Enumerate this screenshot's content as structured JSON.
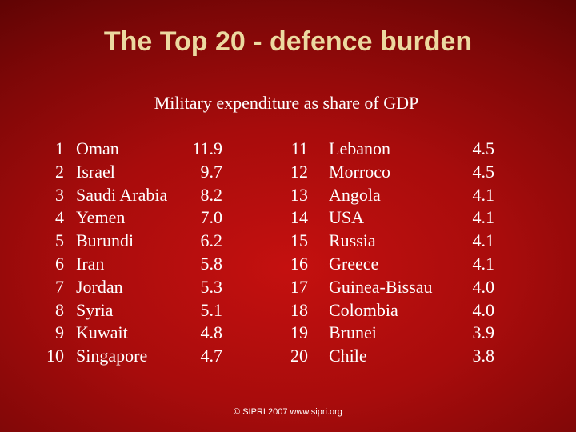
{
  "slide": {
    "title": "The Top 20 - defence burden",
    "subtitle": "Military expenditure as share of GDP",
    "footer": "© SIPRI 2007 www.sipri.org"
  },
  "rankings": {
    "left": [
      {
        "rank": "1",
        "country": "Oman",
        "value": "11.9"
      },
      {
        "rank": "2",
        "country": "Israel",
        "value": "9.7"
      },
      {
        "rank": "3",
        "country": "Saudi Arabia",
        "value": "8.2"
      },
      {
        "rank": "4",
        "country": "Yemen",
        "value": "7.0"
      },
      {
        "rank": "5",
        "country": "Burundi",
        "value": "6.2"
      },
      {
        "rank": "6",
        "country": "Iran",
        "value": "5.8"
      },
      {
        "rank": "7",
        "country": "Jordan",
        "value": "5.3"
      },
      {
        "rank": "8",
        "country": "Syria",
        "value": "5.1"
      },
      {
        "rank": "9",
        "country": "Kuwait",
        "value": "4.8"
      },
      {
        "rank": "10",
        "country": "Singapore",
        "value": "4.7"
      }
    ],
    "right": [
      {
        "rank": "11",
        "country": "Lebanon",
        "value": "4.5"
      },
      {
        "rank": "12",
        "country": "Morroco",
        "value": "4.5"
      },
      {
        "rank": "13",
        "country": "Angola",
        "value": "4.1"
      },
      {
        "rank": "14",
        "country": "USA",
        "value": "4.1"
      },
      {
        "rank": "15",
        "country": "Russia",
        "value": "4.1"
      },
      {
        "rank": "16",
        "country": "Greece",
        "value": "4.1"
      },
      {
        "rank": "17",
        "country": "Guinea-Bissau",
        "value": "4.0"
      },
      {
        "rank": "18",
        "country": "Colombia",
        "value": "4.0"
      },
      {
        "rank": "19",
        "country": "Brunei",
        "value": "3.9"
      },
      {
        "rank": "20",
        "country": "Chile",
        "value": "3.8"
      }
    ]
  }
}
